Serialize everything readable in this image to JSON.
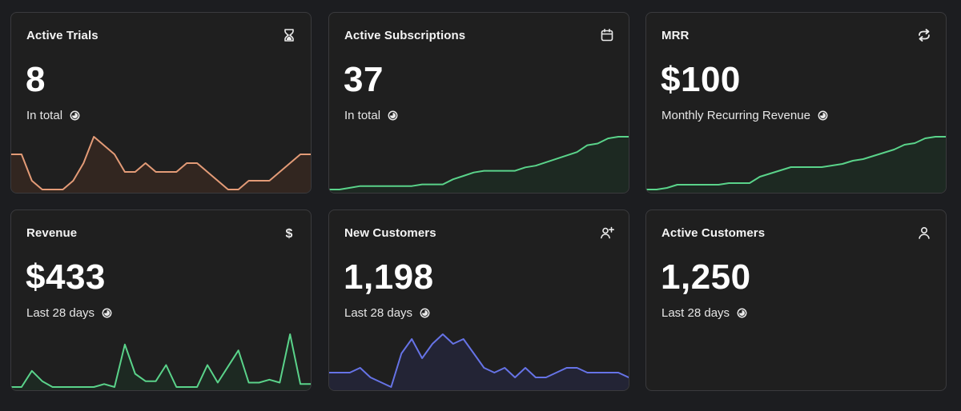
{
  "cards": [
    {
      "title": "Active Trials",
      "value": "8",
      "subtitle": "In total",
      "icon": "hourglass-icon",
      "color": "#e39b77",
      "fill": "#3a2a22",
      "series": [
        8,
        8,
        5,
        4,
        4,
        4,
        5,
        7,
        10,
        9,
        8,
        6,
        6,
        7,
        6,
        6,
        6,
        7,
        7,
        6,
        5,
        4,
        4,
        5,
        5,
        5,
        6,
        7,
        8,
        8
      ]
    },
    {
      "title": "Active Subscriptions",
      "value": "37",
      "subtitle": "In total",
      "icon": "calendar-icon",
      "color": "#5ad38a",
      "fill": "#1d2d24",
      "series": [
        1,
        1,
        2,
        3,
        3,
        3,
        3,
        3,
        3,
        4,
        4,
        4,
        7,
        9,
        11,
        12,
        12,
        12,
        12,
        14,
        15,
        17,
        19,
        21,
        23,
        27,
        28,
        31,
        32,
        32
      ]
    },
    {
      "title": "MRR",
      "value": "$100",
      "subtitle": "Monthly Recurring Revenue",
      "icon": "refresh-icon",
      "color": "#5ad38a",
      "fill": "#1d2d24",
      "series": [
        1,
        1,
        2,
        4,
        4,
        4,
        4,
        4,
        5,
        5,
        5,
        9,
        11,
        13,
        15,
        15,
        15,
        15,
        16,
        17,
        19,
        20,
        22,
        24,
        26,
        29,
        30,
        33,
        34,
        34
      ]
    },
    {
      "title": "Revenue",
      "value": "$433",
      "subtitle": "Last 28 days",
      "icon": "dollar-icon",
      "color": "#5ad38a",
      "fill": "#1d2d24",
      "series": [
        1,
        1,
        12,
        5,
        1,
        1,
        1,
        1,
        1,
        3,
        1,
        30,
        10,
        5,
        5,
        16,
        1,
        1,
        1,
        16,
        4,
        15,
        26,
        4,
        4,
        6,
        4,
        37,
        3,
        3
      ]
    },
    {
      "title": "New Customers",
      "value": "1,198",
      "subtitle": "Last 28 days",
      "icon": "user-plus-icon",
      "color": "#6673e6",
      "fill": "#25273d",
      "series": [
        4,
        4,
        4,
        5,
        3,
        2,
        1,
        8,
        11,
        7,
        10,
        12,
        10,
        11,
        8,
        5,
        4,
        5,
        3,
        5,
        3,
        3,
        4,
        5,
        5,
        4,
        4,
        4,
        4,
        3
      ]
    },
    {
      "title": "Active Customers",
      "value": "1,250",
      "subtitle": "Last 28 days",
      "icon": "user-icon",
      "color": "#5ad38a",
      "fill": "#1d2d24",
      "series": []
    }
  ]
}
